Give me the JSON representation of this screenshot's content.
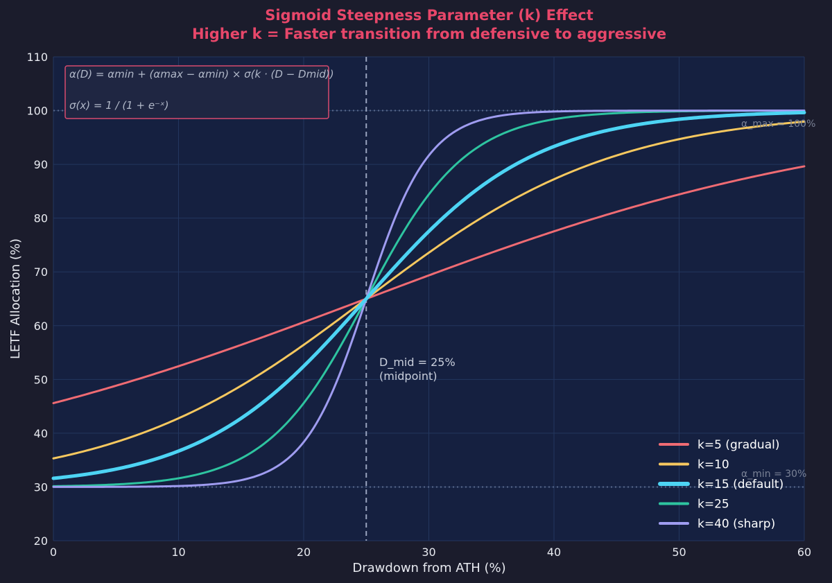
{
  "chart_data": {
    "type": "line",
    "title": "Sigmoid Steepness Parameter (k) Effect",
    "subtitle": "Higher k = Faster transition from defensive to aggressive",
    "xlabel": "Drawdown from ATH (%)",
    "ylabel": "LETF Allocation (%)",
    "xlim": [
      0,
      60
    ],
    "ylim": [
      20,
      110
    ],
    "xticks": [
      0,
      10,
      20,
      30,
      40,
      50,
      60
    ],
    "yticks": [
      20,
      30,
      40,
      50,
      60,
      70,
      80,
      90,
      100,
      110
    ],
    "grid": true,
    "alpha_min": 30,
    "alpha_max": 100,
    "d_mid": 25,
    "series": [
      {
        "name": "k=5 (gradual)",
        "k": 5,
        "color": "#ef6b73",
        "width": 3
      },
      {
        "name": "k=10",
        "k": 10,
        "color": "#f6c85f",
        "width": 3
      },
      {
        "name": "k=15 (default)",
        "k": 15,
        "color": "#4dd4f4",
        "width": 5
      },
      {
        "name": "k=25",
        "k": 25,
        "color": "#2ec4a0",
        "width": 3
      },
      {
        "name": "k=40 (sharp)",
        "k": 40,
        "color": "#9f9cf0",
        "width": 3
      }
    ],
    "annotations": {
      "dmid_line1": "D_mid = 25%",
      "dmid_line2": "(midpoint)",
      "amax_label": "α_max = 100%",
      "amin_label": "α_min = 30%"
    },
    "formula": {
      "line1": "α(D) = αmin + (αmax − αmin) × σ(k · (D − Dmid))",
      "line2": "σ(x) = 1 / (1 + e⁻ˣ)"
    },
    "legend_position": "bottom-right"
  }
}
